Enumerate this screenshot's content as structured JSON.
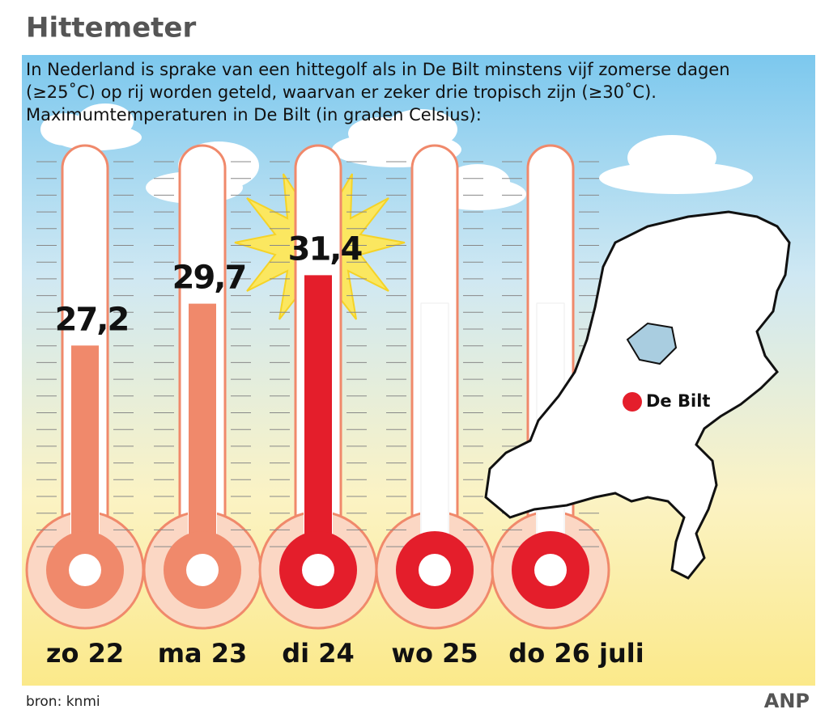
{
  "chart_data": {
    "type": "thermometer",
    "title": "Hittemeter",
    "subtitle": [
      "In Nederland is sprake van een hittegolf als in De Bilt minstens vijf zomerse dagen",
      " (≥25˚C) op rij worden geteld, waarvan er zeker drie tropisch zijn (≥30˚C).",
      "Maximumtemperaturen in De Bilt (in graden Celsius):"
    ],
    "categories": [
      "zo 22",
      "ma 23",
      "di 24",
      "wo 25",
      "do 26 juli"
    ],
    "values": [
      27.2,
      29.7,
      31.4,
      null,
      null
    ],
    "value_labels": [
      "27,2",
      "29,7",
      "31,4",
      null,
      null
    ],
    "colors": [
      "#f0896b",
      "#f0896b",
      "#e41e2b",
      "#e41e2b",
      "#e41e2b"
    ],
    "ylim": [
      15,
      39
    ],
    "annotation": "De Bilt",
    "source": "bron: knmi",
    "credit": "ANP"
  }
}
